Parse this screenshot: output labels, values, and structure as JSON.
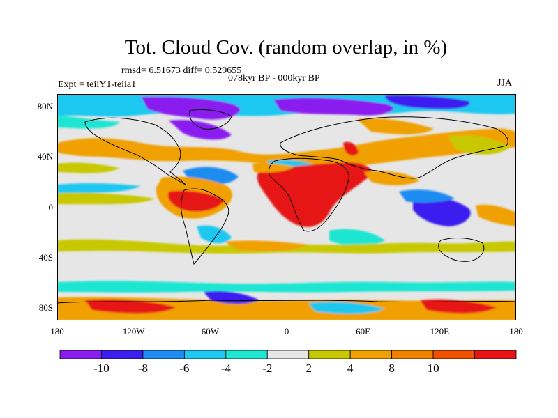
{
  "title": "Tot. Cloud Cov. (random overlap, in %)",
  "stats": "rmsd= 6.51673 diff= 0.529655",
  "period": "078kyr BP - 000kyr BP",
  "expt": "Expt = teiiY1-teiia1",
  "season": "JJA",
  "lat_labels": [
    {
      "label": "80N",
      "lat": 80
    },
    {
      "label": "40N",
      "lat": 40
    },
    {
      "label": "0",
      "lat": 0
    },
    {
      "label": "40S",
      "lat": -40
    },
    {
      "label": "80S",
      "lat": -80
    }
  ],
  "lon_labels": [
    {
      "label": "180",
      "lon": -180
    },
    {
      "label": "120W",
      "lon": -120
    },
    {
      "label": "60W",
      "lon": -60
    },
    {
      "label": "0",
      "lon": 0
    },
    {
      "label": "60E",
      "lon": 60
    },
    {
      "label": "120E",
      "lon": 120
    },
    {
      "label": "180",
      "lon": 180
    }
  ],
  "colorbar": {
    "colors": [
      "#8a1ef0",
      "#3c1ef0",
      "#1e8cf0",
      "#1ec8f0",
      "#1ee6d2",
      "#e6e6e6",
      "#c8c800",
      "#f0a000",
      "#f08000",
      "#f05000",
      "#e61414"
    ],
    "labels": [
      "-10",
      "-8",
      "-6",
      "-4",
      "-2",
      "2",
      "4",
      "8",
      "10"
    ]
  },
  "map_data": {
    "lon_range": [
      -180,
      180
    ],
    "lat_range": [
      -90,
      90
    ],
    "field": "Total cloud cover difference (%)"
  }
}
